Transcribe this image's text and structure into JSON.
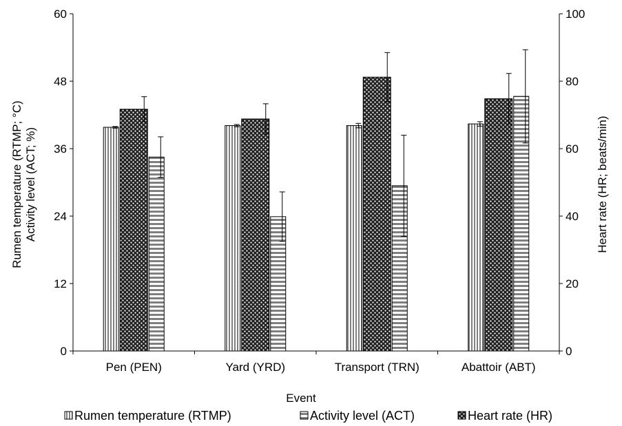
{
  "chart_data": {
    "type": "bar",
    "xlabel": "Event",
    "ylabel_left_line1": "Rumen temperature (RTMP; °C)",
    "ylabel_left_line2": "Activity level (ACT; %)",
    "ylabel_right": "Heart rate (HR; beats/min)",
    "categories": [
      "Pen (PEN)",
      "Yard (YRD)",
      "Transport (TRN)",
      "Abattoir (ABT)"
    ],
    "ylim_left": [
      0,
      60
    ],
    "yticks_left": [
      0,
      12,
      24,
      36,
      48,
      60
    ],
    "ylim_right": [
      0,
      100
    ],
    "yticks_right": [
      0,
      20,
      40,
      60,
      80,
      100
    ],
    "grid": false,
    "legend_position": "bottom",
    "series": [
      {
        "name": "Rumen temperature (RTMP)",
        "axis": "left",
        "pattern": "vertical-lines",
        "values": [
          39.8,
          40.1,
          40.1,
          40.4
        ],
        "errors": [
          0.15,
          0.2,
          0.4,
          0.4
        ]
      },
      {
        "name": "Heart rate (HR)",
        "axis": "right",
        "pattern": "checker-dots",
        "values": [
          71.7,
          68.8,
          81.2,
          74.8
        ],
        "errors": [
          3.7,
          4.5,
          7.3,
          7.5
        ]
      },
      {
        "name": "Activity level (ACT)",
        "axis": "left",
        "pattern": "horizontal-lines",
        "values": [
          34.5,
          23.9,
          29.4,
          45.3
        ],
        "errors": [
          3.6,
          4.4,
          9.0,
          8.3
        ]
      }
    ],
    "legend_order": [
      "Rumen temperature (RTMP)",
      "Activity level (ACT)",
      "Heart rate (HR)"
    ]
  }
}
